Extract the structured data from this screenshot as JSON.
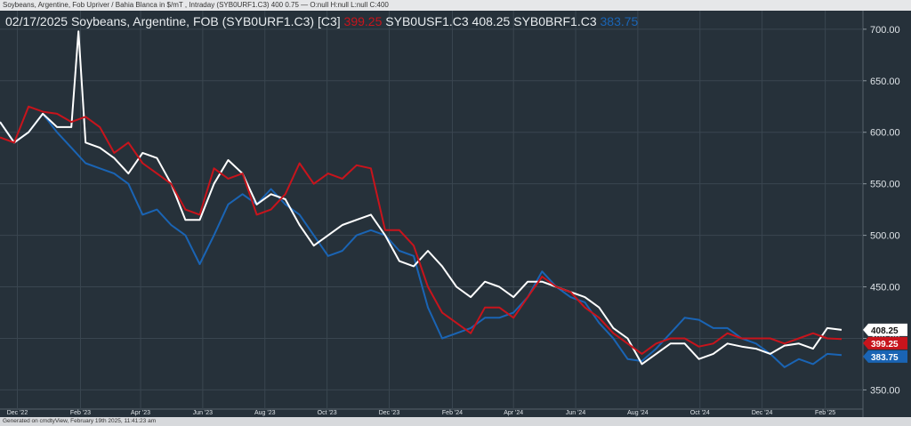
{
  "header": {
    "info": "Soybeans, Argentine, Fob Upriver / Bahia Blanca in $/mT , Intraday (SYB0URF1.C3) 400 0.75 — O:null H:null L:null C:400"
  },
  "title": {
    "date_name": "02/17/2025 Soybeans, Argentine, FOB (SYB0URF1.C3) [C3]",
    "red_value": "399.25",
    "mid": "SYB0USF1.C3 408.25 SYB0BRF1.C3",
    "blue_value": "383.75"
  },
  "footer": {
    "text": "Generated on cmdtyView, February 19th 2025, 11:41:23 am"
  },
  "colors": {
    "background": "#26313a",
    "red": "#c8141c",
    "white": "#ffffff",
    "blue": "#1a64b4",
    "grid": "#3a4650"
  },
  "chart_data": {
    "type": "line",
    "x_labels": [
      "Dec '22",
      "Feb '23",
      "Apr '23",
      "Jun '23",
      "Aug '23",
      "Oct '23",
      "Dec '23",
      "Feb '24",
      "Apr '24",
      "Jun '24",
      "Aug '24",
      "Oct '24",
      "Dec '24",
      "Feb '25"
    ],
    "x_range": [
      "2022-11-14",
      "2025-03-10"
    ],
    "y_ticks": [
      "350.00",
      "400.00",
      "450.00",
      "500.00",
      "550.00",
      "600.00",
      "650.00",
      "700.00"
    ],
    "ylim": [
      340,
      718
    ],
    "grid": "horizontal and vertical",
    "series": [
      {
        "name": "SYB0USF1.C3",
        "color": "#ffffff",
        "last": "408.25",
        "points": [
          [
            "2022-11-14",
            610
          ],
          [
            "2022-11-28",
            590
          ],
          [
            "2022-12-12",
            600
          ],
          [
            "2022-12-26",
            618
          ],
          [
            "2023-01-09",
            605
          ],
          [
            "2023-01-23",
            605
          ],
          [
            "2023-01-30",
            698
          ],
          [
            "2023-02-06",
            590
          ],
          [
            "2023-02-20",
            585
          ],
          [
            "2023-03-06",
            575
          ],
          [
            "2023-03-20",
            560
          ],
          [
            "2023-04-03",
            580
          ],
          [
            "2023-04-17",
            575
          ],
          [
            "2023-05-01",
            550
          ],
          [
            "2023-05-15",
            515
          ],
          [
            "2023-05-29",
            515
          ],
          [
            "2023-06-12",
            550
          ],
          [
            "2023-06-26",
            573
          ],
          [
            "2023-07-10",
            560
          ],
          [
            "2023-07-24",
            530
          ],
          [
            "2023-08-07",
            540
          ],
          [
            "2023-08-21",
            535
          ],
          [
            "2023-09-04",
            510
          ],
          [
            "2023-09-18",
            490
          ],
          [
            "2023-10-02",
            500
          ],
          [
            "2023-10-16",
            510
          ],
          [
            "2023-10-30",
            515
          ],
          [
            "2023-11-13",
            520
          ],
          [
            "2023-11-27",
            500
          ],
          [
            "2023-12-11",
            475
          ],
          [
            "2023-12-25",
            470
          ],
          [
            "2024-01-08",
            485
          ],
          [
            "2024-01-22",
            470
          ],
          [
            "2024-02-05",
            450
          ],
          [
            "2024-02-19",
            440
          ],
          [
            "2024-03-04",
            455
          ],
          [
            "2024-03-18",
            450
          ],
          [
            "2024-04-01",
            440
          ],
          [
            "2024-04-15",
            455
          ],
          [
            "2024-04-29",
            455
          ],
          [
            "2024-05-13",
            450
          ],
          [
            "2024-05-27",
            445
          ],
          [
            "2024-06-10",
            440
          ],
          [
            "2024-06-24",
            430
          ],
          [
            "2024-07-08",
            410
          ],
          [
            "2024-07-22",
            400
          ],
          [
            "2024-08-05",
            375
          ],
          [
            "2024-08-19",
            385
          ],
          [
            "2024-09-02",
            395
          ],
          [
            "2024-09-16",
            395
          ],
          [
            "2024-09-30",
            380
          ],
          [
            "2024-10-14",
            385
          ],
          [
            "2024-10-28",
            395
          ],
          [
            "2024-11-11",
            392
          ],
          [
            "2024-11-25",
            390
          ],
          [
            "2024-12-09",
            385
          ],
          [
            "2024-12-23",
            393
          ],
          [
            "2025-01-06",
            395
          ],
          [
            "2025-01-20",
            390
          ],
          [
            "2025-02-03",
            410
          ],
          [
            "2025-02-17",
            408.25
          ]
        ]
      },
      {
        "name": "SYB0URF1.C3",
        "color": "#c8141c",
        "last": "399.25",
        "points": [
          [
            "2022-11-14",
            595
          ],
          [
            "2022-11-28",
            590
          ],
          [
            "2022-12-12",
            625
          ],
          [
            "2022-12-26",
            620
          ],
          [
            "2023-01-09",
            618
          ],
          [
            "2023-01-23",
            610
          ],
          [
            "2023-02-06",
            615
          ],
          [
            "2023-02-20",
            605
          ],
          [
            "2023-03-06",
            580
          ],
          [
            "2023-03-20",
            590
          ],
          [
            "2023-04-03",
            570
          ],
          [
            "2023-04-17",
            560
          ],
          [
            "2023-05-01",
            550
          ],
          [
            "2023-05-15",
            525
          ],
          [
            "2023-05-29",
            520
          ],
          [
            "2023-06-12",
            565
          ],
          [
            "2023-06-26",
            555
          ],
          [
            "2023-07-10",
            560
          ],
          [
            "2023-07-24",
            520
          ],
          [
            "2023-08-07",
            525
          ],
          [
            "2023-08-21",
            540
          ],
          [
            "2023-09-04",
            570
          ],
          [
            "2023-09-18",
            550
          ],
          [
            "2023-10-02",
            560
          ],
          [
            "2023-10-16",
            555
          ],
          [
            "2023-10-30",
            568
          ],
          [
            "2023-11-13",
            565
          ],
          [
            "2023-11-27",
            505
          ],
          [
            "2023-12-11",
            505
          ],
          [
            "2023-12-25",
            490
          ],
          [
            "2024-01-08",
            450
          ],
          [
            "2024-01-22",
            425
          ],
          [
            "2024-02-05",
            415
          ],
          [
            "2024-02-19",
            405
          ],
          [
            "2024-03-04",
            430
          ],
          [
            "2024-03-18",
            430
          ],
          [
            "2024-04-01",
            420
          ],
          [
            "2024-04-15",
            440
          ],
          [
            "2024-04-29",
            460
          ],
          [
            "2024-05-13",
            450
          ],
          [
            "2024-05-27",
            445
          ],
          [
            "2024-06-10",
            430
          ],
          [
            "2024-06-24",
            420
          ],
          [
            "2024-07-08",
            405
          ],
          [
            "2024-07-22",
            395
          ],
          [
            "2024-08-05",
            385
          ],
          [
            "2024-08-19",
            395
          ],
          [
            "2024-09-02",
            400
          ],
          [
            "2024-09-16",
            400
          ],
          [
            "2024-09-30",
            392
          ],
          [
            "2024-10-14",
            395
          ],
          [
            "2024-10-28",
            405
          ],
          [
            "2024-11-11",
            400
          ],
          [
            "2024-11-25",
            400
          ],
          [
            "2024-12-09",
            400
          ],
          [
            "2024-12-23",
            395
          ],
          [
            "2025-01-06",
            400
          ],
          [
            "2025-01-20",
            405
          ],
          [
            "2025-02-03",
            400
          ],
          [
            "2025-02-17",
            399.25
          ]
        ]
      },
      {
        "name": "SYB0BRF1.C3",
        "color": "#1a64b4",
        "last": "383.75",
        "points": [
          [
            "2022-11-14",
            610
          ],
          [
            "2022-11-28",
            590
          ],
          [
            "2022-12-12",
            600
          ],
          [
            "2022-12-26",
            618
          ],
          [
            "2023-01-09",
            600
          ],
          [
            "2023-01-23",
            585
          ],
          [
            "2023-02-06",
            570
          ],
          [
            "2023-02-20",
            565
          ],
          [
            "2023-03-06",
            560
          ],
          [
            "2023-03-20",
            550
          ],
          [
            "2023-04-03",
            520
          ],
          [
            "2023-04-17",
            525
          ],
          [
            "2023-05-01",
            510
          ],
          [
            "2023-05-15",
            500
          ],
          [
            "2023-05-29",
            472
          ],
          [
            "2023-06-12",
            500
          ],
          [
            "2023-06-26",
            530
          ],
          [
            "2023-07-10",
            540
          ],
          [
            "2023-07-24",
            530
          ],
          [
            "2023-08-07",
            545
          ],
          [
            "2023-08-21",
            530
          ],
          [
            "2023-09-04",
            520
          ],
          [
            "2023-09-18",
            500
          ],
          [
            "2023-10-02",
            480
          ],
          [
            "2023-10-16",
            485
          ],
          [
            "2023-10-30",
            500
          ],
          [
            "2023-11-13",
            505
          ],
          [
            "2023-11-27",
            500
          ],
          [
            "2023-12-11",
            485
          ],
          [
            "2023-12-25",
            480
          ],
          [
            "2024-01-08",
            430
          ],
          [
            "2024-01-22",
            400
          ],
          [
            "2024-02-05",
            405
          ],
          [
            "2024-02-19",
            410
          ],
          [
            "2024-03-04",
            420
          ],
          [
            "2024-03-18",
            420
          ],
          [
            "2024-04-01",
            425
          ],
          [
            "2024-04-15",
            440
          ],
          [
            "2024-04-29",
            465
          ],
          [
            "2024-05-13",
            450
          ],
          [
            "2024-05-27",
            440
          ],
          [
            "2024-06-10",
            435
          ],
          [
            "2024-06-24",
            415
          ],
          [
            "2024-07-08",
            400
          ],
          [
            "2024-07-22",
            380
          ],
          [
            "2024-08-05",
            378
          ],
          [
            "2024-08-19",
            390
          ],
          [
            "2024-09-02",
            405
          ],
          [
            "2024-09-16",
            420
          ],
          [
            "2024-09-30",
            418
          ],
          [
            "2024-10-14",
            410
          ],
          [
            "2024-10-28",
            410
          ],
          [
            "2024-11-11",
            400
          ],
          [
            "2024-11-25",
            395
          ],
          [
            "2024-12-09",
            385
          ],
          [
            "2024-12-23",
            372
          ],
          [
            "2025-01-06",
            380
          ],
          [
            "2025-01-20",
            375
          ],
          [
            "2025-02-03",
            385
          ],
          [
            "2025-02-17",
            383.75
          ]
        ]
      }
    ]
  }
}
